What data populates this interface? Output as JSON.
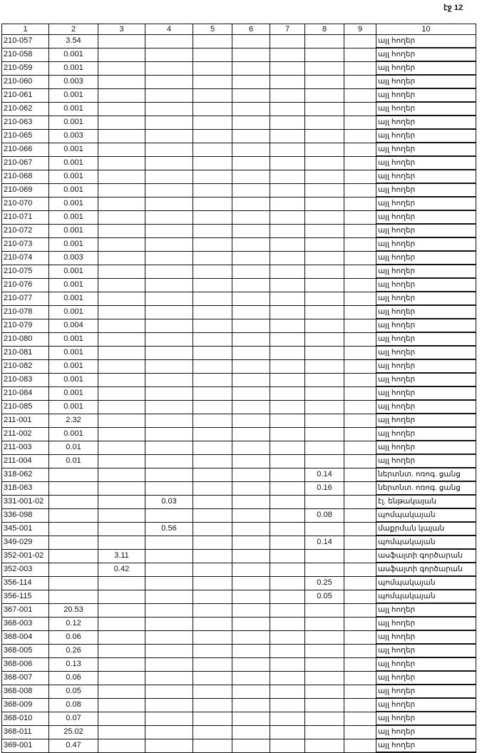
{
  "page_label": "էջ 12",
  "headers": [
    "1",
    "2",
    "3",
    "4",
    "5",
    "6",
    "7",
    "8",
    "9",
    "10"
  ],
  "rows": [
    [
      "210-057",
      "3.54",
      "",
      "",
      "",
      "",
      "",
      "",
      "",
      "այլ հողեր"
    ],
    [
      "210-058",
      "0.001",
      "",
      "",
      "",
      "",
      "",
      "",
      "",
      "այլ հողեր"
    ],
    [
      "210-059",
      "0.001",
      "",
      "",
      "",
      "",
      "",
      "",
      "",
      "այլ հողեր"
    ],
    [
      "210-060",
      "0.003",
      "",
      "",
      "",
      "",
      "",
      "",
      "",
      "այլ հողեր"
    ],
    [
      "210-061",
      "0.001",
      "",
      "",
      "",
      "",
      "",
      "",
      "",
      "այլ հողեր"
    ],
    [
      "210-062",
      "0.001",
      "",
      "",
      "",
      "",
      "",
      "",
      "",
      "այլ հողեր"
    ],
    [
      "210-063",
      "0.001",
      "",
      "",
      "",
      "",
      "",
      "",
      "",
      "այլ հողեր"
    ],
    [
      "210-065",
      "0.003",
      "",
      "",
      "",
      "",
      "",
      "",
      "",
      "այլ հողեր"
    ],
    [
      "210-066",
      "0.001",
      "",
      "",
      "",
      "",
      "",
      "",
      "",
      "այլ հողեր"
    ],
    [
      "210-067",
      "0.001",
      "",
      "",
      "",
      "",
      "",
      "",
      "",
      "այլ հողեր"
    ],
    [
      "210-068",
      "0.001",
      "",
      "",
      "",
      "",
      "",
      "",
      "",
      "այլ հողեր"
    ],
    [
      "210-069",
      "0.001",
      "",
      "",
      "",
      "",
      "",
      "",
      "",
      "այլ հողեր"
    ],
    [
      "210-070",
      "0.001",
      "",
      "",
      "",
      "",
      "",
      "",
      "",
      "այլ հողեր"
    ],
    [
      "210-071",
      "0.001",
      "",
      "",
      "",
      "",
      "",
      "",
      "",
      "այլ հողեր"
    ],
    [
      "210-072",
      "0.001",
      "",
      "",
      "",
      "",
      "",
      "",
      "",
      "այլ հողեր"
    ],
    [
      "210-073",
      "0.001",
      "",
      "",
      "",
      "",
      "",
      "",
      "",
      "այլ հողեր"
    ],
    [
      "210-074",
      "0.003",
      "",
      "",
      "",
      "",
      "",
      "",
      "",
      "այլ հողեր"
    ],
    [
      "210-075",
      "0.001",
      "",
      "",
      "",
      "",
      "",
      "",
      "",
      "այլ հողեր"
    ],
    [
      "210-076",
      "0.001",
      "",
      "",
      "",
      "",
      "",
      "",
      "",
      "այլ հողեր"
    ],
    [
      "210-077",
      "0.001",
      "",
      "",
      "",
      "",
      "",
      "",
      "",
      "այլ հողեր"
    ],
    [
      "210-078",
      "0.001",
      "",
      "",
      "",
      "",
      "",
      "",
      "",
      "այլ հողեր"
    ],
    [
      "210-079",
      "0.004",
      "",
      "",
      "",
      "",
      "",
      "",
      "",
      "այլ հողեր"
    ],
    [
      "210-080",
      "0.001",
      "",
      "",
      "",
      "",
      "",
      "",
      "",
      "այլ հողեր"
    ],
    [
      "210-081",
      "0.001",
      "",
      "",
      "",
      "",
      "",
      "",
      "",
      "այլ հողեր"
    ],
    [
      "210-082",
      "0.001",
      "",
      "",
      "",
      "",
      "",
      "",
      "",
      "այլ հողեր"
    ],
    [
      "210-083",
      "0.001",
      "",
      "",
      "",
      "",
      "",
      "",
      "",
      "այլ հողեր"
    ],
    [
      "210-084",
      "0.001",
      "",
      "",
      "",
      "",
      "",
      "",
      "",
      "այլ հողեր"
    ],
    [
      "210-085",
      "0.001",
      "",
      "",
      "",
      "",
      "",
      "",
      "",
      "այլ հողեր"
    ],
    [
      "211-001",
      "2.32",
      "",
      "",
      "",
      "",
      "",
      "",
      "",
      "այլ հողեր"
    ],
    [
      "211-002",
      "0.001",
      "",
      "",
      "",
      "",
      "",
      "",
      "",
      "այլ հողեր"
    ],
    [
      "211-003",
      "0.01",
      "",
      "",
      "",
      "",
      "",
      "",
      "",
      "այլ հողեր"
    ],
    [
      "211-004",
      "0.01",
      "",
      "",
      "",
      "",
      "",
      "",
      "",
      "այլ հողեր"
    ],
    [
      "318-062",
      "",
      "",
      "",
      "",
      "",
      "",
      "0.14",
      "",
      "ներտնտ. ոռոգ. ցանց"
    ],
    [
      "318-063",
      "",
      "",
      "",
      "",
      "",
      "",
      "0.16",
      "",
      "ներտնտ. ոռոգ. ցանց"
    ],
    [
      "331-001-02",
      "",
      "",
      "0.03",
      "",
      "",
      "",
      "",
      "",
      "էլ. ենթակայան"
    ],
    [
      "336-098",
      "",
      "",
      "",
      "",
      "",
      "",
      "0.08",
      "",
      "պոմպակայան"
    ],
    [
      "345-001",
      "",
      "",
      "0.56",
      "",
      "",
      "",
      "",
      "",
      "մաքրման կայան"
    ],
    [
      "349-029",
      "",
      "",
      "",
      "",
      "",
      "",
      "0.14",
      "",
      "պոմպակայան"
    ],
    [
      "352-001-02",
      "",
      "3.11",
      "",
      "",
      "",
      "",
      "",
      "",
      "ասֆալտի գործարան"
    ],
    [
      "352-003",
      "",
      "0.42",
      "",
      "",
      "",
      "",
      "",
      "",
      "ասֆալտի գործարան"
    ],
    [
      "356-114",
      "",
      "",
      "",
      "",
      "",
      "",
      "0.25",
      "",
      "պոմպակայան"
    ],
    [
      "356-115",
      "",
      "",
      "",
      "",
      "",
      "",
      "0.05",
      "",
      "պոմպակայան"
    ],
    [
      "367-001",
      "20.53",
      "",
      "",
      "",
      "",
      "",
      "",
      "",
      "այլ հողեր"
    ],
    [
      "368-003",
      "0.12",
      "",
      "",
      "",
      "",
      "",
      "",
      "",
      "այլ հողեր"
    ],
    [
      "368-004",
      "0.06",
      "",
      "",
      "",
      "",
      "",
      "",
      "",
      "այլ հողեր"
    ],
    [
      "368-005",
      "0.26",
      "",
      "",
      "",
      "",
      "",
      "",
      "",
      "այլ հողեր"
    ],
    [
      "368-006",
      "0.13",
      "",
      "",
      "",
      "",
      "",
      "",
      "",
      "այլ հողեր"
    ],
    [
      "368-007",
      "0.06",
      "",
      "",
      "",
      "",
      "",
      "",
      "",
      "այլ հողեր"
    ],
    [
      "368-008",
      "0.05",
      "",
      "",
      "",
      "",
      "",
      "",
      "",
      "այլ հողեր"
    ],
    [
      "368-009",
      "0.08",
      "",
      "",
      "",
      "",
      "",
      "",
      "",
      "այլ հողեր"
    ],
    [
      "368-010",
      "0.07",
      "",
      "",
      "",
      "",
      "",
      "",
      "",
      "այլ հողեր"
    ],
    [
      "368-011",
      "25.02",
      "",
      "",
      "",
      "",
      "",
      "",
      "",
      "այլ հողեր"
    ],
    [
      "369-001",
      "0.47",
      "",
      "",
      "",
      "",
      "",
      "",
      "",
      "այլ հողեր"
    ]
  ]
}
